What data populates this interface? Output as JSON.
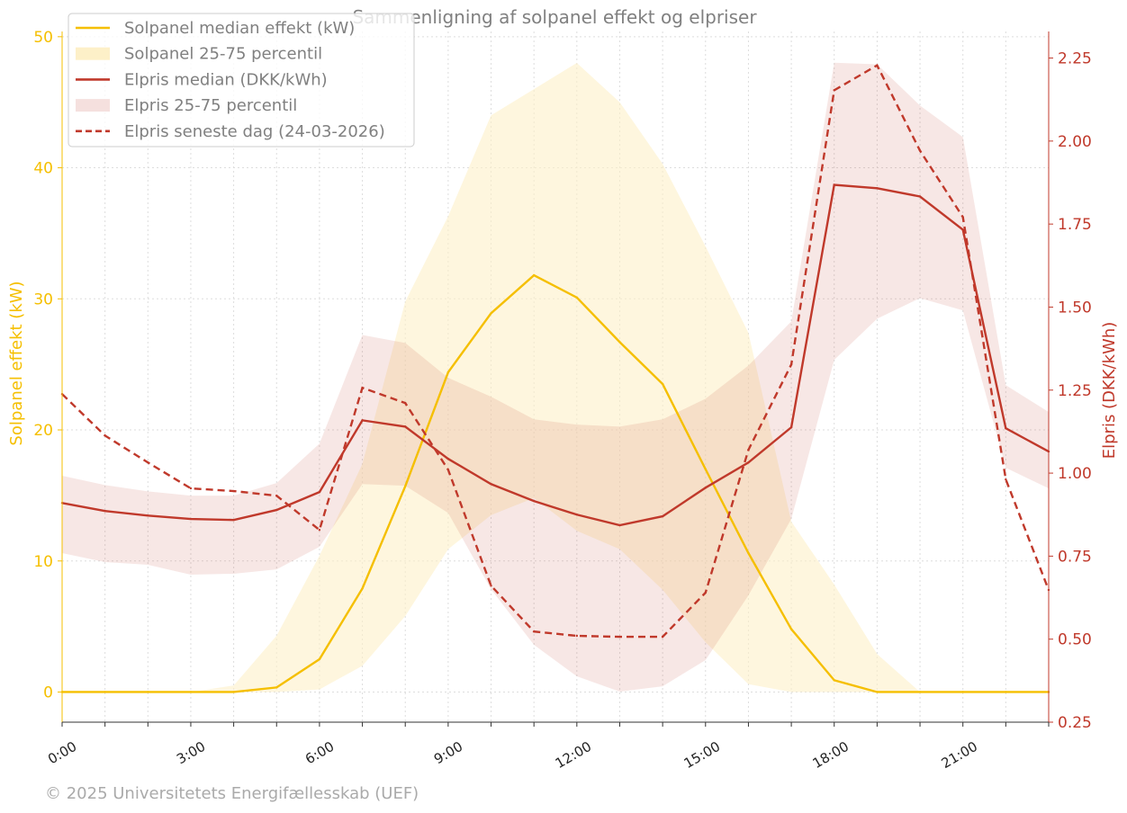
{
  "chart_data": {
    "type": "line",
    "title": "Sammenligning af solpanel effekt og elpriser",
    "xlabel": "",
    "ylabel_left": "Solpanel effekt (kW)",
    "ylabel_right": "Elpris (DKK/kWh)",
    "x": [
      0,
      1,
      2,
      3,
      4,
      5,
      6,
      7,
      8,
      9,
      10,
      11,
      12,
      13,
      14,
      15,
      16,
      17,
      18,
      19,
      20,
      21,
      22,
      23
    ],
    "x_tick_labels": [
      "0:00",
      "3:00",
      "6:00",
      "9:00",
      "12:00",
      "15:00",
      "18:00",
      "21:00"
    ],
    "x_tick_hours": [
      0,
      3,
      6,
      9,
      12,
      15,
      18,
      21
    ],
    "ylim_left": [
      -2.3,
      50.4
    ],
    "yticks_left": [
      "0",
      "10",
      "20",
      "30",
      "40",
      "50"
    ],
    "ylim_right": [
      0.25,
      2.33
    ],
    "yticks_right": [
      "0.25",
      "0.50",
      "0.75",
      "1.00",
      "1.25",
      "1.50",
      "1.75",
      "2.00",
      "2.25"
    ],
    "grid": true,
    "legend_position": "top-left",
    "colors": {
      "solar": "#f5bf00",
      "solar_fill": "#fdf0c8",
      "price": "#c0392b",
      "axis_text": "#808080"
    },
    "series": [
      {
        "name": "Solpanel median effekt (kW)",
        "axis": "left",
        "style": "solid",
        "values": [
          0,
          0,
          0,
          0,
          0,
          0.35,
          2.5,
          7.9,
          15.7,
          24.4,
          28.9,
          31.8,
          30.1,
          26.7,
          23.5,
          17,
          10.6,
          4.8,
          0.9,
          0,
          0,
          0,
          0,
          0
        ]
      },
      {
        "name": "Solpanel 25-75 percentil",
        "axis": "left",
        "style": "band",
        "lower": [
          0,
          0,
          0,
          0,
          0,
          0,
          0.2,
          2,
          5.8,
          10.9,
          13.5,
          14.8,
          12.3,
          10.9,
          7.8,
          3.8,
          0.6,
          0,
          0,
          0,
          0,
          0,
          0,
          0
        ],
        "upper": [
          0,
          0,
          0,
          0,
          0.5,
          4.3,
          10.4,
          17.4,
          29.8,
          36.3,
          44,
          46,
          48,
          45,
          40.3,
          34,
          27.4,
          13,
          8.2,
          2.9,
          0,
          0,
          0,
          0
        ]
      },
      {
        "name": "Elpris median (DKK/kWh)",
        "axis": "right",
        "style": "solid",
        "values": [
          0.91,
          0.886,
          0.872,
          0.862,
          0.859,
          0.889,
          0.943,
          1.159,
          1.14,
          1.043,
          0.967,
          0.916,
          0.875,
          0.843,
          0.87,
          0.956,
          1.032,
          1.138,
          1.868,
          1.858,
          1.833,
          1.733,
          1.135,
          1.065
        ]
      },
      {
        "name": "Elpris 25-75 percentil",
        "axis": "right",
        "style": "band",
        "lower": [
          0.759,
          0.732,
          0.724,
          0.694,
          0.697,
          0.71,
          0.778,
          0.967,
          0.962,
          0.88,
          0.65,
          0.483,
          0.388,
          0.342,
          0.358,
          0.437,
          0.632,
          0.862,
          1.341,
          1.465,
          1.527,
          1.49,
          1.016,
          0.954
        ],
        "upper": [
          0.992,
          0.964,
          0.945,
          0.932,
          0.932,
          0.97,
          1.089,
          1.416,
          1.392,
          1.287,
          1.23,
          1.162,
          1.146,
          1.14,
          1.162,
          1.224,
          1.324,
          1.457,
          2.236,
          2.231,
          2.107,
          2.012,
          1.265,
          1.184
        ]
      },
      {
        "name": "Elpris seneste dag (24-03-2026)",
        "axis": "right",
        "style": "dashed",
        "values": [
          1.238,
          1.113,
          1.032,
          0.954,
          0.946,
          0.932,
          0.829,
          1.257,
          1.211,
          1.01,
          0.661,
          0.523,
          0.51,
          0.507,
          0.507,
          0.64,
          1.07,
          1.327,
          2.153,
          2.228,
          1.971,
          1.771,
          0.981,
          0.648
        ]
      }
    ]
  },
  "footer": "© 2025 Universitetets Energifællesskab (UEF)"
}
